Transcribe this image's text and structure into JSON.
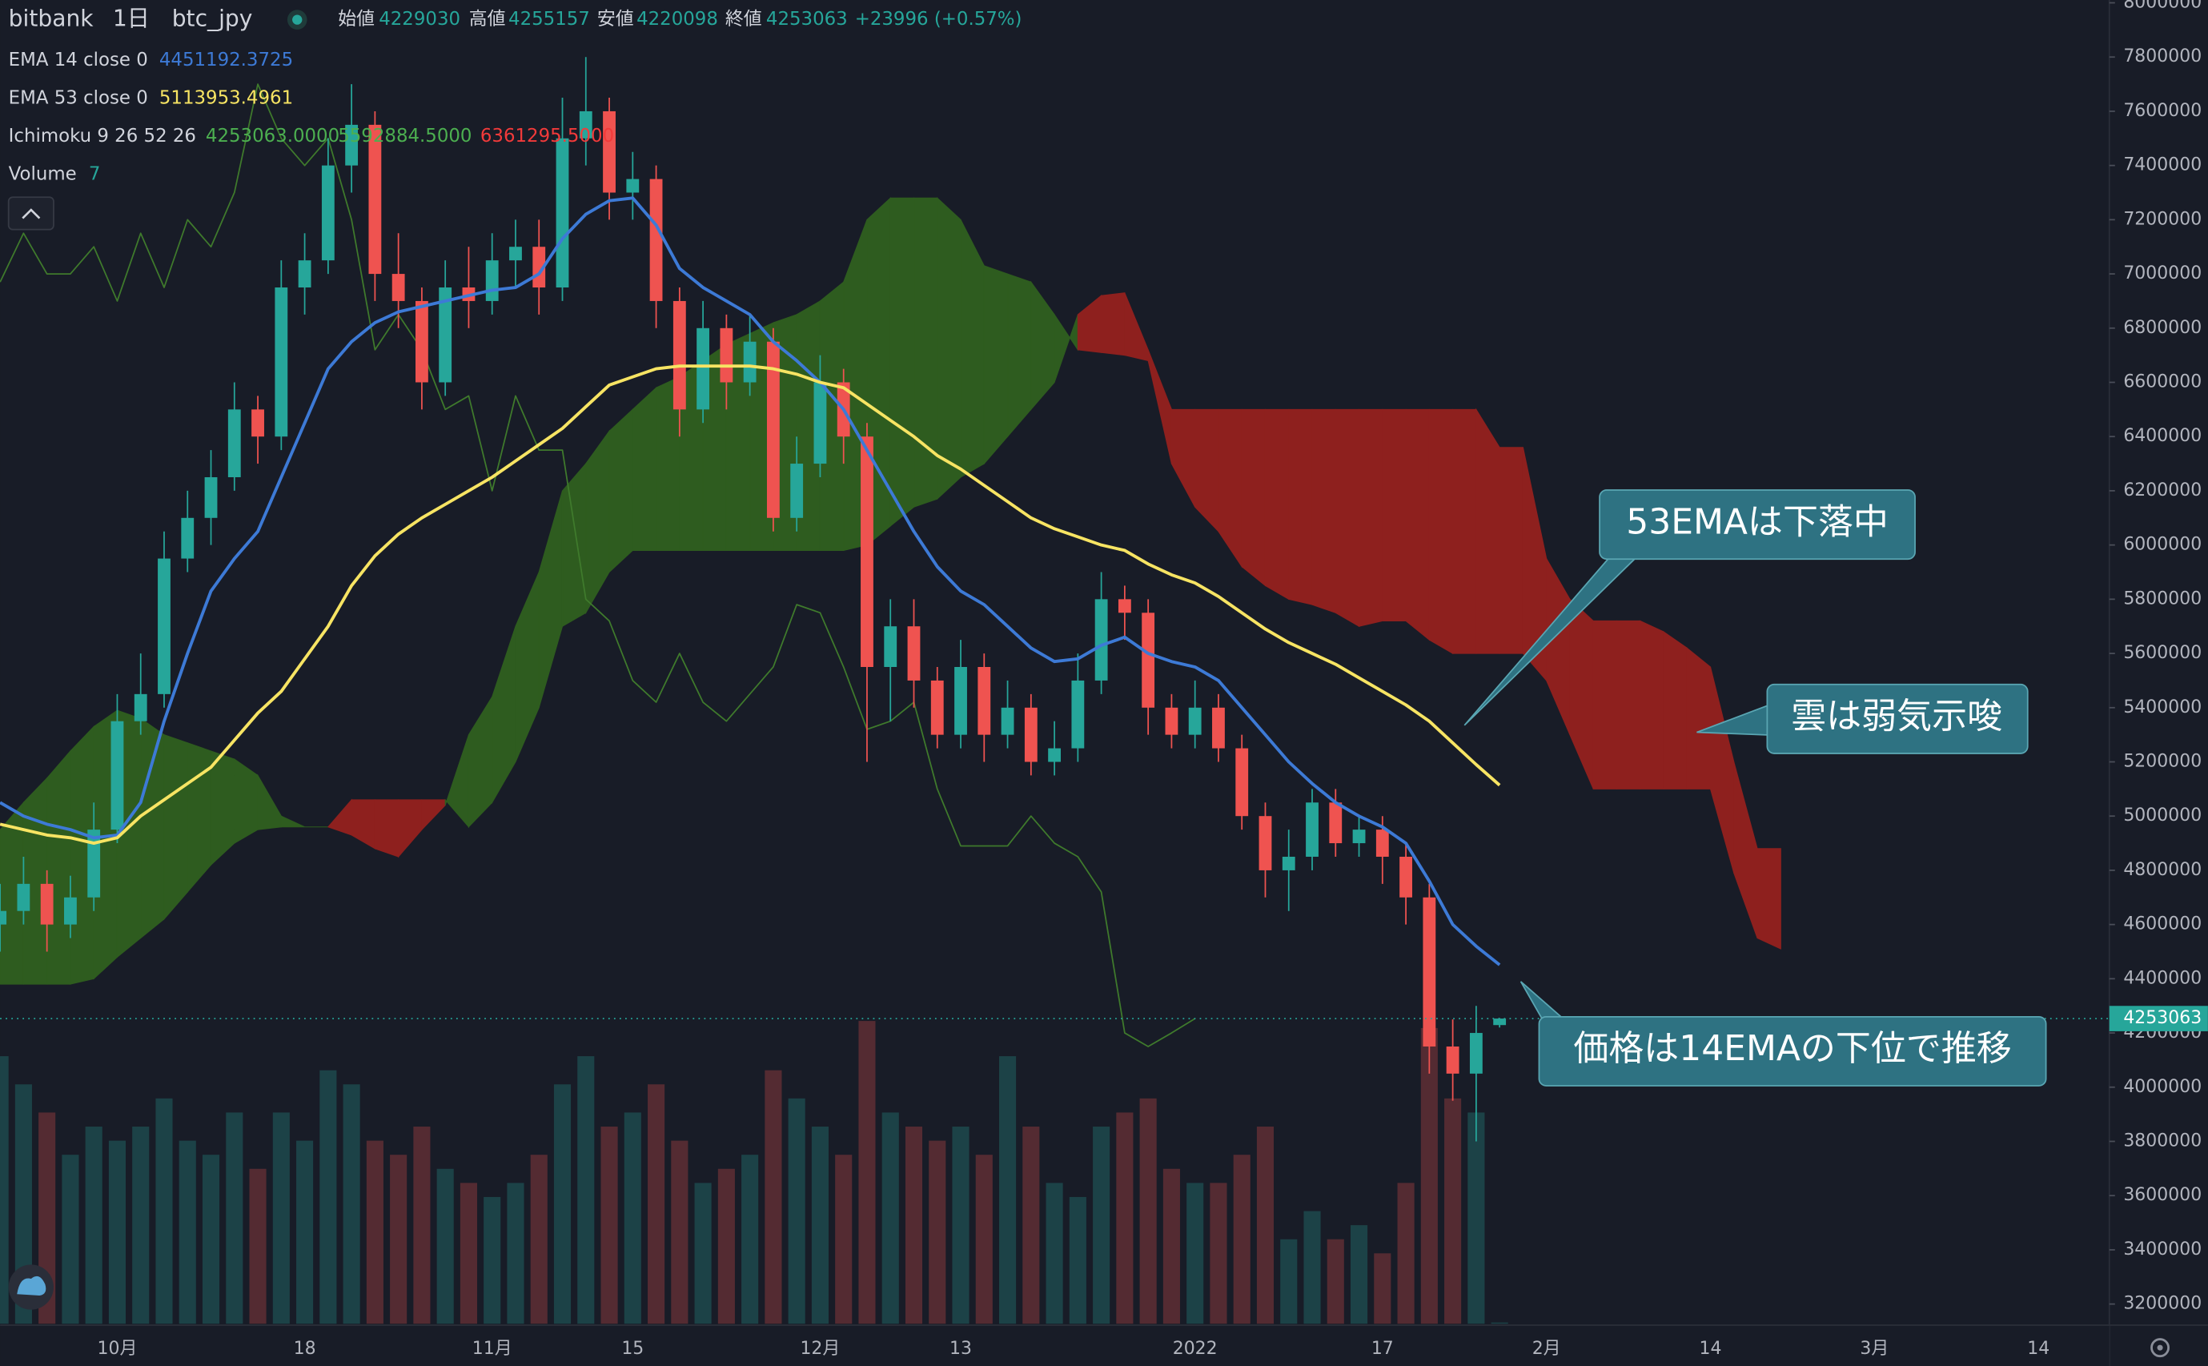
{
  "chart_data": {
    "type": "candlestick",
    "header": {
      "exchange": "bitbank",
      "interval": "1日",
      "symbol": "btc_jpy",
      "open_label": "始値",
      "high_label": "高値",
      "low_label": "安値",
      "close_label": "終値",
      "change": "+23996 (+0.57%)"
    },
    "up_color": "#26a69a",
    "down_color": "#ef5350",
    "ylim": [
      3200000,
      8000000
    ],
    "yticks": [
      3200000,
      3400000,
      3600000,
      3800000,
      4000000,
      4200000,
      4400000,
      4600000,
      4800000,
      5000000,
      5200000,
      5400000,
      5600000,
      5800000,
      6000000,
      6200000,
      6400000,
      6600000,
      6800000,
      7000000,
      7200000,
      7400000,
      7600000,
      7800000,
      8000000
    ],
    "categories": [
      null,
      null,
      null,
      null,
      null,
      "10月",
      null,
      null,
      null,
      null,
      null,
      null,
      null,
      "18",
      null,
      null,
      null,
      null,
      null,
      null,
      null,
      "11月",
      null,
      null,
      null,
      null,
      null,
      "15",
      null,
      null,
      null,
      null,
      null,
      null,
      null,
      "12月",
      null,
      null,
      null,
      null,
      null,
      "13",
      null,
      null,
      null,
      null,
      null,
      null,
      null,
      null,
      null,
      "2022",
      null,
      null,
      null,
      null,
      null,
      null,
      null,
      "17",
      null,
      null,
      null,
      null,
      null,
      null,
      "2月",
      null,
      null,
      null,
      null,
      null,
      null,
      "14",
      null,
      null,
      null,
      null,
      null,
      null,
      "3月",
      null,
      null,
      null,
      null,
      null,
      null,
      "14",
      null
    ],
    "ohlc": [
      [
        4600000,
        4750000,
        4500000,
        4650000
      ],
      [
        4650000,
        4850000,
        4600000,
        4750000
      ],
      [
        4750000,
        4800000,
        4500000,
        4600000
      ],
      [
        4600000,
        4780000,
        4550000,
        4700000
      ],
      [
        4700000,
        5050000,
        4650000,
        4950000
      ],
      [
        4950000,
        5450000,
        4900000,
        5350000
      ],
      [
        5350000,
        5600000,
        5300000,
        5450000
      ],
      [
        5450000,
        6050000,
        5400000,
        5950000
      ],
      [
        5950000,
        6200000,
        5900000,
        6100000
      ],
      [
        6100000,
        6350000,
        6000000,
        6250000
      ],
      [
        6250000,
        6600000,
        6200000,
        6500000
      ],
      [
        6500000,
        6550000,
        6300000,
        6400000
      ],
      [
        6400000,
        7050000,
        6350000,
        6950000
      ],
      [
        6950000,
        7150000,
        6850000,
        7050000
      ],
      [
        7050000,
        7500000,
        7000000,
        7400000
      ],
      [
        7400000,
        7700000,
        7300000,
        7550000
      ],
      [
        7550000,
        7600000,
        6900000,
        7000000
      ],
      [
        7000000,
        7150000,
        6800000,
        6900000
      ],
      [
        6900000,
        6950000,
        6500000,
        6600000
      ],
      [
        6600000,
        7050000,
        6550000,
        6950000
      ],
      [
        6950000,
        7100000,
        6800000,
        6900000
      ],
      [
        6900000,
        7150000,
        6850000,
        7050000
      ],
      [
        7050000,
        7200000,
        6950000,
        7100000
      ],
      [
        7100000,
        7200000,
        6850000,
        6950000
      ],
      [
        6950000,
        7650000,
        6900000,
        7500000
      ],
      [
        7500000,
        7800000,
        7400000,
        7600000
      ],
      [
        7600000,
        7650000,
        7200000,
        7300000
      ],
      [
        7300000,
        7450000,
        7200000,
        7350000
      ],
      [
        7350000,
        7400000,
        6800000,
        6900000
      ],
      [
        6900000,
        6950000,
        6400000,
        6500000
      ],
      [
        6500000,
        6900000,
        6450000,
        6800000
      ],
      [
        6800000,
        6850000,
        6500000,
        6600000
      ],
      [
        6600000,
        6850000,
        6550000,
        6750000
      ],
      [
        6750000,
        6800000,
        6050000,
        6100000
      ],
      [
        6100000,
        6400000,
        6050000,
        6300000
      ],
      [
        6300000,
        6700000,
        6250000,
        6600000
      ],
      [
        6600000,
        6650000,
        6300000,
        6400000
      ],
      [
        6400000,
        6450000,
        5200000,
        5550000
      ],
      [
        5550000,
        5800000,
        5350000,
        5700000
      ],
      [
        5700000,
        5800000,
        5400000,
        5500000
      ],
      [
        5500000,
        5550000,
        5250000,
        5300000
      ],
      [
        5300000,
        5650000,
        5250000,
        5550000
      ],
      [
        5550000,
        5600000,
        5200000,
        5300000
      ],
      [
        5300000,
        5500000,
        5250000,
        5400000
      ],
      [
        5400000,
        5450000,
        5150000,
        5200000
      ],
      [
        5200000,
        5350000,
        5150000,
        5250000
      ],
      [
        5250000,
        5600000,
        5200000,
        5500000
      ],
      [
        5500000,
        5900000,
        5450000,
        5800000
      ],
      [
        5800000,
        5850000,
        5650000,
        5750000
      ],
      [
        5750000,
        5800000,
        5300000,
        5400000
      ],
      [
        5400000,
        5450000,
        5250000,
        5300000
      ],
      [
        5300000,
        5500000,
        5250000,
        5400000
      ],
      [
        5400000,
        5450000,
        5200000,
        5250000
      ],
      [
        5250000,
        5300000,
        4950000,
        5000000
      ],
      [
        5000000,
        5050000,
        4700000,
        4800000
      ],
      [
        4800000,
        4950000,
        4650000,
        4850000
      ],
      [
        4850000,
        5100000,
        4800000,
        5050000
      ],
      [
        5050000,
        5100000,
        4850000,
        4900000
      ],
      [
        4900000,
        5000000,
        4850000,
        4950000
      ],
      [
        4950000,
        5000000,
        4750000,
        4850000
      ],
      [
        4850000,
        4900000,
        4600000,
        4700000
      ],
      [
        4700000,
        4750000,
        4050000,
        4150000
      ],
      [
        4150000,
        4250000,
        3950000,
        4050000
      ],
      [
        4050000,
        4300000,
        3800000,
        4200000
      ],
      [
        4229030,
        4255157,
        4220098,
        4253063
      ],
      null,
      null,
      null,
      null,
      null,
      null,
      null,
      null,
      null,
      null,
      null,
      null,
      null,
      null,
      null,
      null,
      null,
      null,
      null,
      null,
      null,
      null,
      null,
      null
    ],
    "series": [
      {
        "name": "EMA 14 close 0",
        "color": "#3d7ad6",
        "values": [
          5050000,
          5000000,
          4970000,
          4950000,
          4920000,
          4930000,
          5050000,
          5350000,
          5600000,
          5830000,
          5950000,
          6050000,
          6250000,
          6450000,
          6650000,
          6750000,
          6820000,
          6860000,
          6880000,
          6900000,
          6920000,
          6940000,
          6950000,
          7000000,
          7130000,
          7220000,
          7270000,
          7280000,
          7180000,
          7020000,
          6950000,
          6900000,
          6850000,
          6750000,
          6680000,
          6600000,
          6500000,
          6350000,
          6200000,
          6050000,
          5920000,
          5830000,
          5780000,
          5700000,
          5620000,
          5570000,
          5580000,
          5630000,
          5660000,
          5600000,
          5570000,
          5550000,
          5500000,
          5400000,
          5300000,
          5200000,
          5120000,
          5050000,
          5000000,
          4960000,
          4900000,
          4760000,
          4600000,
          4520000,
          4451192.3725,
          null,
          null,
          null,
          null,
          null,
          null,
          null,
          null,
          null,
          null,
          null,
          null,
          null,
          null,
          null,
          null,
          null,
          null,
          null,
          null,
          null,
          null,
          null,
          null
        ]
      },
      {
        "name": "EMA 53 close 0",
        "color": "#f7e463",
        "values": [
          4970000,
          4950000,
          4930000,
          4920000,
          4900000,
          4920000,
          5000000,
          5060000,
          5120000,
          5180000,
          5280000,
          5380000,
          5460000,
          5580000,
          5700000,
          5850000,
          5960000,
          6040000,
          6100000,
          6150000,
          6200000,
          6250000,
          6310000,
          6370000,
          6430000,
          6510000,
          6590000,
          6620000,
          6650000,
          6660000,
          6660000,
          6660000,
          6660000,
          6650000,
          6630000,
          6600000,
          6580000,
          6520000,
          6460000,
          6400000,
          6330000,
          6280000,
          6220000,
          6160000,
          6100000,
          6060000,
          6030000,
          6000000,
          5980000,
          5930000,
          5890000,
          5860000,
          5810000,
          5750000,
          5690000,
          5640000,
          5600000,
          5560000,
          5510000,
          5460000,
          5410000,
          5350000,
          5270000,
          5190000,
          5113953.4961,
          null,
          null,
          null,
          null,
          null,
          null,
          null,
          null,
          null,
          null,
          null,
          null,
          null,
          null,
          null,
          null,
          null,
          null,
          null,
          null,
          null,
          null,
          null,
          null
        ]
      }
    ],
    "ichimoku": {
      "name": "Ichimoku 9 26 52 26",
      "legend_values": [
        "4253063.0000",
        "5592884.5000",
        "6361295.5000"
      ],
      "bull_color": "#2e5c1f",
      "bear_color": "#8e201e",
      "lagging_color": "#3f7a2c",
      "span_a": [
        4950000,
        5050000,
        5140000,
        5240000,
        5330000,
        5390000,
        5360000,
        5300000,
        5270000,
        5240000,
        5210000,
        5150000,
        5000000,
        4960000,
        4960000,
        4930000,
        4880000,
        4850000,
        4950000,
        5040000,
        5300000,
        5440000,
        5700000,
        5900000,
        6200000,
        6300000,
        6420000,
        6500000,
        6580000,
        6620000,
        6680000,
        6740000,
        6780000,
        6820000,
        6850000,
        6900000,
        6970000,
        7200000,
        7280000,
        7280000,
        7280000,
        7200000,
        7030000,
        7000000,
        6970000,
        6850000,
        6720000,
        6710000,
        6700000,
        6680000,
        6300000,
        6140000,
        6050000,
        5920000,
        5850000,
        5800000,
        5780000,
        5750000,
        5700000,
        5720000,
        5720000,
        5650000,
        5600000,
        5600000,
        5600000,
        5600000,
        5500000,
        5300000,
        5100000,
        5100000,
        5100000,
        5100000,
        5100000,
        5100000,
        4790000,
        4550000,
        4510000,
        null,
        null,
        null,
        null,
        null,
        null,
        null,
        null,
        null,
        null,
        null,
        null
      ],
      "span_b": [
        4380000,
        4380000,
        4380000,
        4380000,
        4400000,
        4480000,
        4550000,
        4620000,
        4720000,
        4820000,
        4900000,
        4950000,
        4960000,
        4960000,
        4960000,
        5060000,
        5060000,
        5060000,
        5060000,
        5060000,
        4960000,
        5050000,
        5200000,
        5400000,
        5700000,
        5750000,
        5900000,
        5980000,
        5980000,
        5980000,
        5980000,
        5980000,
        5980000,
        5980000,
        5980000,
        5980000,
        5980000,
        6000000,
        6070000,
        6140000,
        6170000,
        6250000,
        6300000,
        6400000,
        6500000,
        6600000,
        6850000,
        6920000,
        6930000,
        6720000,
        6500000,
        6500000,
        6500000,
        6500000,
        6500000,
        6500000,
        6500000,
        6500000,
        6500000,
        6500000,
        6500000,
        6500000,
        6500000,
        6500000,
        6360000,
        6360000,
        5950000,
        5800000,
        5720000,
        5720000,
        5720000,
        5680000,
        5620000,
        5550000,
        5200000,
        4880000,
        4880000,
        null,
        null,
        null,
        null,
        null,
        null,
        null,
        null,
        null,
        null,
        null,
        null
      ],
      "lagging": [
        6970000,
        7150000,
        7000000,
        7000000,
        7100000,
        6900000,
        7150000,
        6950000,
        7200000,
        7100000,
        7300000,
        7700000,
        7500000,
        7400000,
        7500000,
        7200000,
        6720000,
        6850000,
        6720000,
        6500000,
        6550000,
        6200000,
        6550000,
        6350000,
        6350000,
        5800000,
        5720000,
        5500000,
        5420000,
        5600000,
        5420000,
        5350000,
        5450000,
        5550000,
        5780000,
        5750000,
        5550000,
        5320000,
        5350000,
        5420000,
        5100000,
        4890000,
        4890000,
        4890000,
        5000000,
        4900000,
        4850000,
        4720000,
        4200000,
        4150000,
        4200000,
        4253063,
        null,
        null,
        null,
        null,
        null,
        null,
        null,
        null,
        null,
        null,
        null,
        null,
        null,
        null,
        null,
        null,
        null,
        null,
        null,
        null,
        null,
        null,
        null,
        null,
        null,
        null,
        null,
        null,
        null,
        null,
        null,
        null,
        null,
        null,
        null,
        null,
        null
      ]
    },
    "volume": {
      "name": "Volume",
      "values": [
        1520,
        1360,
        1200,
        960,
        1120,
        1040,
        1120,
        1280,
        1040,
        960,
        1200,
        880,
        1200,
        1040,
        1440,
        1360,
        1040,
        960,
        1120,
        880,
        800,
        720,
        800,
        960,
        1360,
        1520,
        1120,
        1200,
        1360,
        1040,
        800,
        880,
        960,
        1440,
        1280,
        1120,
        960,
        1720,
        1200,
        1120,
        1040,
        1120,
        960,
        1520,
        1120,
        800,
        720,
        1120,
        1200,
        1280,
        880,
        800,
        800,
        960,
        1120,
        480,
        640,
        480,
        560,
        400,
        800,
        1680,
        1280,
        1200,
        7,
        null,
        null,
        null,
        null,
        null,
        null,
        null,
        null,
        null,
        null,
        null,
        null,
        null,
        null,
        null,
        null,
        null,
        null,
        null,
        null,
        null,
        null,
        null,
        null
      ]
    },
    "annotations": [
      "53EMAは下落中",
      "雲は弱気示唆",
      "価格は14EMAの下位で推移"
    ]
  }
}
